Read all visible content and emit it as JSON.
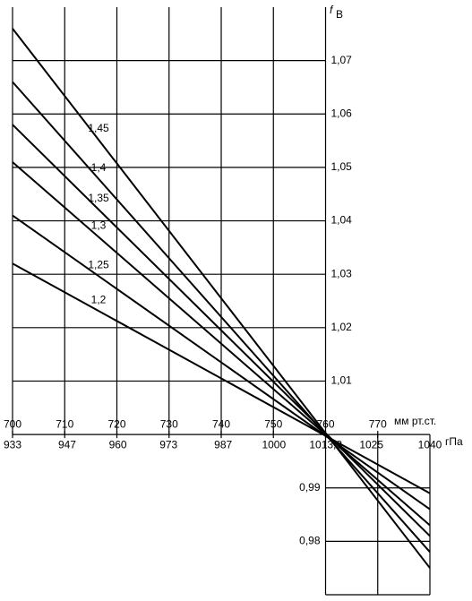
{
  "chart_data": {
    "type": "line",
    "ylabel": {
      "symbol": "f",
      "subscript": "В"
    },
    "xlabel": "мм рт.ст.",
    "x2label": "гПа",
    "x": [
      700,
      780
    ],
    "xlim": [
      700,
      780
    ],
    "xticks": [
      700,
      710,
      720,
      730,
      740,
      750,
      760,
      770
    ],
    "x2lim": [
      933,
      1040
    ],
    "x2ticks": [
      933,
      947,
      960,
      973,
      987,
      1000,
      {
        "value": 1013.3,
        "label": "1013,3"
      },
      1025,
      1040
    ],
    "ylim": [
      0.97,
      1.08
    ],
    "yticks": [
      {
        "value": 0.98,
        "label": "0,98"
      },
      {
        "value": 0.99,
        "label": "0,99"
      },
      {
        "value": 1.01,
        "label": "1,01"
      },
      {
        "value": 1.02,
        "label": "1,02"
      },
      {
        "value": 1.03,
        "label": "1,03"
      },
      {
        "value": 1.04,
        "label": "1,04"
      },
      {
        "value": 1.05,
        "label": "1,05"
      },
      {
        "value": 1.06,
        "label": "1,06"
      },
      {
        "value": 1.07,
        "label": "1,07"
      }
    ],
    "grid": true,
    "color": "#000000",
    "series": [
      {
        "name": "1,45",
        "values": [
          1.076,
          0.975
        ]
      },
      {
        "name": "1,4",
        "values": [
          1.066,
          0.978
        ]
      },
      {
        "name": "1,35",
        "values": [
          1.058,
          0.981
        ]
      },
      {
        "name": "1,3",
        "values": [
          1.051,
          0.983
        ]
      },
      {
        "name": "1,25",
        "values": [
          1.041,
          0.986
        ]
      },
      {
        "name": "1,2",
        "values": [
          1.032,
          0.989
        ]
      }
    ]
  }
}
